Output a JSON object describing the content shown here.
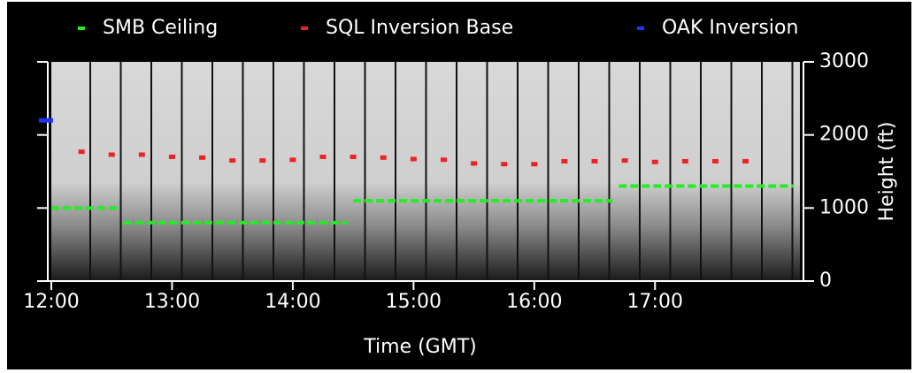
{
  "chart_data": {
    "type": "line",
    "xlabel": "Time (GMT)",
    "ylabel": "Height (ft)",
    "xlim": [
      12,
      18.2
    ],
    "ylim": [
      0,
      3000
    ],
    "xticks": [
      {
        "value": 12,
        "label": "12:00"
      },
      {
        "value": 13,
        "label": "13:00"
      },
      {
        "value": 14,
        "label": "14:00"
      },
      {
        "value": 15,
        "label": "15:00"
      },
      {
        "value": 16,
        "label": "16:00"
      },
      {
        "value": 17,
        "label": "17:00"
      }
    ],
    "yticks": [
      0,
      1000,
      2000,
      3000
    ],
    "legend": "top",
    "series": [
      {
        "name": "SMB Ceiling",
        "color": "#22ee22",
        "style": "dashed",
        "x": [
          12.0,
          12.55,
          12.58,
          12.6,
          14.45,
          14.48,
          14.5,
          16.65,
          16.68,
          16.7,
          18.15
        ],
        "values": [
          1000,
          1000,
          null,
          800,
          800,
          null,
          1100,
          1100,
          null,
          1300,
          1300
        ]
      },
      {
        "name": "SQL Inversion Base",
        "color": "#ee2222",
        "style": "points",
        "x": [
          12.25,
          12.5,
          12.75,
          13.0,
          13.25,
          13.5,
          13.75,
          14.0,
          14.25,
          14.5,
          14.75,
          15.0,
          15.25,
          15.5,
          15.75,
          16.0,
          16.25,
          16.5,
          16.75,
          17.0,
          17.25,
          17.5,
          17.75
        ],
        "values": [
          1770,
          1730,
          1730,
          1700,
          1690,
          1650,
          1650,
          1660,
          1700,
          1700,
          1690,
          1670,
          1660,
          1610,
          1600,
          1600,
          1640,
          1640,
          1650,
          1630,
          1640,
          1640,
          1640
        ]
      },
      {
        "name": "OAK Inversion",
        "color": "#2233ff",
        "style": "points",
        "x": [
          12.0
        ],
        "values": [
          2200
        ]
      }
    ]
  }
}
